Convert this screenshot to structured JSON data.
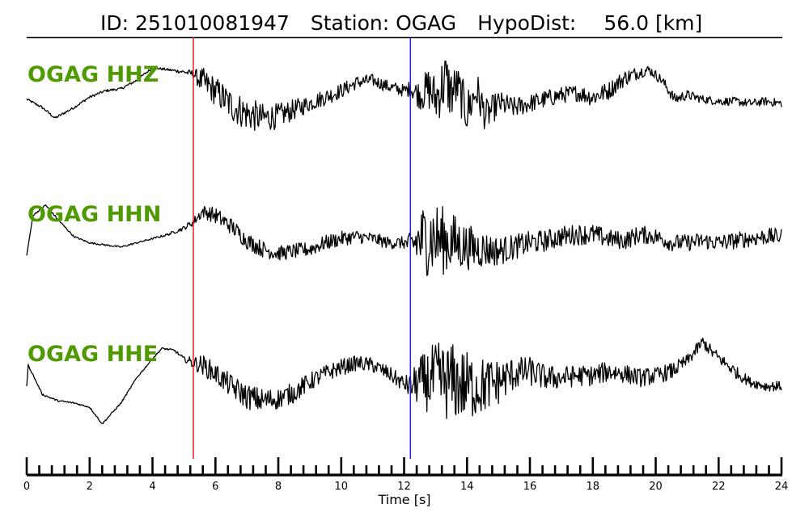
{
  "title": {
    "id_label": "ID:",
    "id_value": "251010081947",
    "station_label": "Station:",
    "station_value": "OGAG",
    "hypodist_label": "HypoDist:",
    "hypodist_value": "56.0",
    "hypodist_unit": "[km]"
  },
  "chart_data": {
    "type": "line",
    "title": "ID: 251010081947   Station: OGAG   HypoDist:    56.0 [km]",
    "xlabel": "Time [s]",
    "ylabel": "",
    "xlim": [
      0,
      24
    ],
    "x_ticks": [
      0,
      2,
      4,
      6,
      8,
      10,
      12,
      14,
      16,
      18,
      20,
      22,
      24
    ],
    "x_tick_labels": [
      "0",
      "2",
      "4",
      "6",
      "8",
      "10",
      "12",
      "14",
      "16",
      "18",
      "20",
      "22",
      "24"
    ],
    "minor_tick_step": 0.4,
    "grid": false,
    "picks": [
      {
        "time": 5.3,
        "color": "#ee1c24"
      },
      {
        "time": 12.2,
        "color": "#1f1fe0"
      }
    ],
    "series": [
      {
        "name": "OGAG HHZ",
        "color": "#000000",
        "x": [
          0,
          0.5,
          0.9,
          1.5,
          2.0,
          2.5,
          3.0,
          3.5,
          4.0,
          4.5,
          5.0,
          5.3,
          5.6,
          6.0,
          6.5,
          7.0,
          7.5,
          8.0,
          8.5,
          9.0,
          9.5,
          10.0,
          10.5,
          11.0,
          11.5,
          12.0,
          12.2,
          12.5,
          12.8,
          13.0,
          13.3,
          13.5,
          13.7,
          14.0,
          14.3,
          14.6,
          15.0,
          15.5,
          16.0,
          16.5,
          17.0,
          17.5,
          18.0,
          18.5,
          19.0,
          19.5,
          19.8,
          20.2,
          20.6,
          21.0,
          21.5,
          22.0,
          22.5,
          23.0,
          23.5,
          24.0
        ],
        "y": [
          0.1,
          -0.1,
          -0.35,
          -0.1,
          0.15,
          0.3,
          0.35,
          0.55,
          0.85,
          0.8,
          0.75,
          0.7,
          0.5,
          0.3,
          -0.05,
          -0.25,
          -0.35,
          -0.3,
          -0.15,
          0.0,
          0.15,
          0.3,
          0.5,
          0.55,
          0.4,
          0.3,
          0.35,
          0.2,
          0.35,
          0.1,
          0.55,
          0.25,
          0.4,
          -0.2,
          0.3,
          -0.3,
          0.0,
          -0.1,
          0.0,
          0.1,
          0.2,
          0.25,
          0.15,
          0.3,
          0.6,
          0.75,
          0.8,
          0.55,
          0.1,
          0.2,
          0.1,
          0.05,
          0.05,
          0.0,
          0.05,
          0.0
        ],
        "noise": [
          0.03,
          0.03,
          0.03,
          0.03,
          0.03,
          0.03,
          0.03,
          0.03,
          0.03,
          0.03,
          0.05,
          0.1,
          0.35,
          0.35,
          0.4,
          0.4,
          0.35,
          0.3,
          0.25,
          0.2,
          0.2,
          0.18,
          0.16,
          0.15,
          0.15,
          0.15,
          0.2,
          0.35,
          0.55,
          0.6,
          0.75,
          0.65,
          0.5,
          0.55,
          0.5,
          0.4,
          0.3,
          0.25,
          0.22,
          0.22,
          0.2,
          0.2,
          0.22,
          0.22,
          0.2,
          0.15,
          0.12,
          0.12,
          0.14,
          0.12,
          0.1,
          0.1,
          0.1,
          0.1,
          0.1,
          0.1
        ]
      },
      {
        "name": "OGAG HHN",
        "color": "#000000",
        "x": [
          0,
          0.2,
          0.6,
          1.0,
          1.5,
          2.0,
          2.5,
          3.0,
          3.5,
          4.0,
          4.5,
          5.0,
          5.3,
          5.6,
          6.0,
          6.5,
          7.0,
          7.5,
          8.0,
          8.5,
          9.0,
          9.5,
          10.0,
          10.5,
          11.0,
          11.5,
          12.0,
          12.2,
          12.5,
          12.8,
          13.0,
          13.3,
          13.6,
          14.0,
          14.5,
          15.0,
          15.5,
          16.0,
          16.5,
          17.0,
          17.5,
          18.0,
          18.5,
          19.0,
          19.5,
          20.0,
          20.5,
          21.0,
          21.5,
          22.0,
          22.5,
          23.0,
          23.5,
          24.0
        ],
        "y": [
          -0.35,
          0.6,
          0.85,
          0.5,
          0.1,
          -0.05,
          -0.1,
          -0.15,
          -0.05,
          0.05,
          0.15,
          0.3,
          0.45,
          0.7,
          0.6,
          0.35,
          0.0,
          -0.2,
          -0.3,
          -0.25,
          -0.2,
          -0.05,
          0.05,
          0.1,
          0.05,
          -0.05,
          -0.05,
          -0.1,
          0.0,
          0.1,
          0.05,
          0.0,
          -0.05,
          -0.15,
          -0.2,
          -0.25,
          -0.15,
          -0.05,
          0.0,
          0.1,
          0.15,
          0.15,
          0.05,
          0.0,
          0.15,
          0.1,
          -0.05,
          -0.05,
          0.0,
          -0.05,
          0.0,
          0.05,
          0.1,
          0.1
        ],
        "noise": [
          0.0,
          0.02,
          0.02,
          0.02,
          0.02,
          0.02,
          0.02,
          0.02,
          0.02,
          0.02,
          0.03,
          0.05,
          0.1,
          0.15,
          0.2,
          0.2,
          0.2,
          0.2,
          0.18,
          0.18,
          0.18,
          0.18,
          0.18,
          0.16,
          0.15,
          0.15,
          0.15,
          0.3,
          0.8,
          0.95,
          0.9,
          0.8,
          0.7,
          0.55,
          0.45,
          0.35,
          0.3,
          0.28,
          0.26,
          0.25,
          0.25,
          0.25,
          0.22,
          0.22,
          0.22,
          0.2,
          0.2,
          0.2,
          0.2,
          0.2,
          0.2,
          0.2,
          0.2,
          0.2
        ]
      },
      {
        "name": "OGAG HHE",
        "color": "#000000",
        "x": [
          0,
          0.05,
          0.5,
          1.0,
          1.5,
          2.0,
          2.4,
          3.0,
          3.5,
          4.0,
          4.3,
          4.7,
          5.0,
          5.3,
          5.6,
          6.0,
          6.5,
          7.0,
          7.5,
          8.0,
          8.5,
          9.0,
          9.5,
          10.0,
          10.5,
          11.0,
          11.5,
          12.0,
          12.2,
          12.5,
          13.0,
          13.5,
          14.0,
          14.5,
          15.0,
          15.5,
          16.0,
          16.5,
          17.0,
          17.5,
          18.0,
          18.5,
          19.0,
          19.5,
          20.0,
          20.5,
          21.0,
          21.5,
          21.8,
          22.2,
          22.6,
          23.0,
          23.5,
          24.0
        ],
        "y": [
          0.0,
          0.5,
          -0.2,
          -0.35,
          -0.4,
          -0.5,
          -0.9,
          -0.4,
          0.2,
          0.65,
          0.9,
          0.85,
          0.65,
          0.55,
          0.5,
          0.3,
          0.0,
          -0.25,
          -0.35,
          -0.3,
          -0.15,
          0.1,
          0.3,
          0.45,
          0.55,
          0.5,
          0.3,
          0.05,
          0.0,
          0.1,
          0.15,
          0.1,
          0.0,
          0.0,
          0.1,
          0.3,
          0.35,
          0.2,
          0.2,
          0.25,
          0.25,
          0.35,
          0.3,
          0.2,
          0.25,
          0.35,
          0.6,
          1.05,
          0.8,
          0.55,
          0.3,
          0.1,
          0.0,
          0.0
        ],
        "noise": [
          0.0,
          0.02,
          0.02,
          0.02,
          0.02,
          0.02,
          0.02,
          0.02,
          0.02,
          0.02,
          0.02,
          0.03,
          0.05,
          0.15,
          0.25,
          0.25,
          0.28,
          0.3,
          0.3,
          0.25,
          0.25,
          0.22,
          0.2,
          0.2,
          0.18,
          0.18,
          0.18,
          0.2,
          0.3,
          0.6,
          0.9,
          0.95,
          0.85,
          0.7,
          0.55,
          0.4,
          0.35,
          0.3,
          0.28,
          0.25,
          0.25,
          0.25,
          0.22,
          0.22,
          0.2,
          0.2,
          0.15,
          0.15,
          0.15,
          0.15,
          0.15,
          0.12,
          0.12,
          0.12
        ]
      }
    ]
  }
}
